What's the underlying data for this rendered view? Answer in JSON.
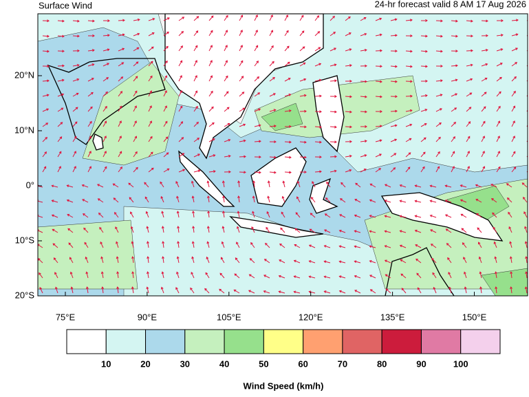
{
  "header": {
    "title": "Surface Wind",
    "subtitle": "24-hr forecast valid 8 AM 17 Aug 2026"
  },
  "map": {
    "lat_labels": [
      "20°N",
      "10°N",
      "0°",
      "10°S",
      "20°S"
    ],
    "lon_labels": [
      "75°E",
      "90°E",
      "105°E",
      "120°E",
      "135°E",
      "150°E"
    ]
  },
  "legend": {
    "title": "Wind Speed (km/h)",
    "colors": [
      "#ffffff",
      "#d4f5f2",
      "#acd9eb",
      "#c5f0be",
      "#96e08c",
      "#ffff88",
      "#ffa070",
      "#e06464",
      "#cc1c3c",
      "#e07aa4",
      "#f4d0ec"
    ],
    "labels": [
      "10",
      "20",
      "30",
      "40",
      "50",
      "60",
      "70",
      "80",
      "90",
      "100"
    ]
  }
}
